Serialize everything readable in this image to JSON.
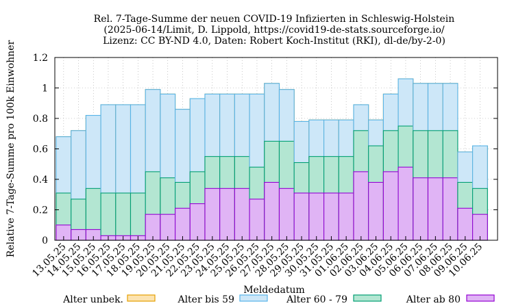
{
  "chart_data": {
    "type": "bar",
    "stacked": true,
    "title": [
      "Rel. 7-Tage-Summe der neuen COVID-19 Infizierten in Schleswig-Holstein",
      "(2025-06-14/Limit, D. Lippold, https://covid19-de-stats.sourceforge.io/",
      "Lizenz: CC BY-ND 4.0, Daten: Robert Koch-Institut (RKI), dl-de/by-2-0)"
    ],
    "xlabel": "Meldedatum",
    "ylabel": "Relative 7-Tage-Summe pro 100k Einwohner",
    "ylim": [
      0,
      1.2
    ],
    "yticks": [
      "0",
      "0.2",
      "0.4",
      "0.6",
      "0.8",
      "1",
      "1.2"
    ],
    "grid": true,
    "legend_position": "bottom",
    "categories": [
      "13.05.25",
      "14.05.25",
      "15.05.25",
      "16.05.25",
      "17.05.25",
      "18.05.25",
      "19.05.25",
      "20.05.25",
      "21.05.25",
      "22.05.25",
      "23.05.25",
      "24.05.25",
      "25.05.25",
      "26.05.25",
      "27.05.25",
      "28.05.25",
      "29.05.25",
      "30.05.25",
      "31.05.25",
      "01.06.25",
      "02.06.25",
      "03.06.25",
      "04.06.25",
      "05.06.25",
      "06.06.25",
      "07.06.25",
      "08.06.25",
      "09.06.25",
      "10.06.25"
    ],
    "series": [
      {
        "name": "Alter ab 80",
        "fill": "#e0b4f5",
        "stroke": "#9400d3",
        "values": [
          0.1,
          0.07,
          0.07,
          0.03,
          0.03,
          0.03,
          0.17,
          0.17,
          0.21,
          0.24,
          0.34,
          0.34,
          0.34,
          0.27,
          0.38,
          0.34,
          0.31,
          0.31,
          0.31,
          0.31,
          0.45,
          0.38,
          0.45,
          0.48,
          0.41,
          0.41,
          0.41,
          0.21,
          0.17
        ]
      },
      {
        "name": "Alter 60 - 79",
        "fill": "#b3e6d2",
        "stroke": "#009e73",
        "values": [
          0.21,
          0.2,
          0.27,
          0.28,
          0.28,
          0.28,
          0.28,
          0.24,
          0.17,
          0.21,
          0.21,
          0.21,
          0.21,
          0.21,
          0.27,
          0.31,
          0.2,
          0.24,
          0.24,
          0.24,
          0.27,
          0.24,
          0.27,
          0.27,
          0.31,
          0.31,
          0.31,
          0.17,
          0.17
        ]
      },
      {
        "name": "Alter bis 59",
        "fill": "#cde7f8",
        "stroke": "#56b4e9",
        "values": [
          0.37,
          0.45,
          0.48,
          0.58,
          0.58,
          0.58,
          0.54,
          0.55,
          0.48,
          0.48,
          0.41,
          0.41,
          0.41,
          0.48,
          0.38,
          0.34,
          0.27,
          0.24,
          0.24,
          0.24,
          0.17,
          0.17,
          0.24,
          0.31,
          0.31,
          0.31,
          0.31,
          0.2,
          0.28
        ]
      },
      {
        "name": "Alter unbek.",
        "fill": "#fce3b0",
        "stroke": "#e69f00",
        "values": [
          0,
          0,
          0,
          0,
          0,
          0,
          0,
          0,
          0,
          0,
          0,
          0,
          0,
          0,
          0,
          0,
          0,
          0,
          0,
          0,
          0,
          0,
          0,
          0,
          0,
          0,
          0,
          0,
          0
        ]
      }
    ],
    "legend_order": [
      "Alter unbek.",
      "Alter bis 59",
      "Alter 60 - 79",
      "Alter ab 80"
    ]
  }
}
